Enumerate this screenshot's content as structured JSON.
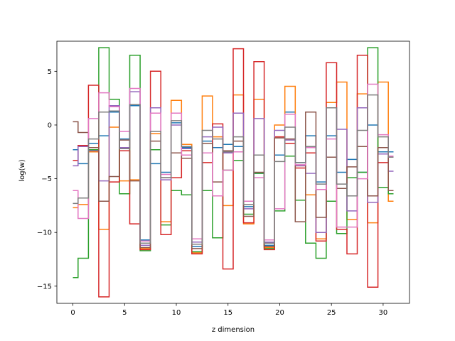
{
  "chart_data": {
    "type": "line",
    "drawstyle": "steps-mid",
    "title": "",
    "xlabel": "z dimension",
    "ylabel": "log(w)",
    "xlim": [
      -1.55,
      32.55
    ],
    "ylim": [
      -16.6,
      7.8
    ],
    "xticks": [
      0,
      5,
      10,
      15,
      20,
      25,
      30
    ],
    "yticks": [
      -15,
      -10,
      -5,
      0,
      5
    ],
    "ytick_labels": [
      "−15",
      "−10",
      "−5",
      "0",
      "5"
    ],
    "grid": false,
    "legend": false,
    "x": [
      0,
      1,
      2,
      3,
      4,
      5,
      6,
      7,
      8,
      9,
      10,
      11,
      12,
      13,
      14,
      15,
      16,
      17,
      18,
      19,
      20,
      21,
      22,
      23,
      24,
      25,
      26,
      27,
      28,
      29,
      30,
      31
    ],
    "series": [
      {
        "color": "#1f77b4",
        "values": [
          -2.3,
          -3.6,
          -1.7,
          -1.0,
          1.2,
          -1.3,
          1.8,
          -10.7,
          -3.6,
          -4.4,
          0.2,
          -2.1,
          -11.3,
          -1.5,
          -2.1,
          -1.8,
          -2.0,
          -7.6,
          -4.5,
          -11.2,
          -2.8,
          1.2,
          -3.5,
          -1.0,
          -5.3,
          -1.0,
          -4.4,
          -3.2,
          -4.4,
          0.0,
          -2.5,
          -2.5
        ]
      },
      {
        "color": "#ff7f0e",
        "values": [
          -7.7,
          -7.4,
          -2.5,
          -9.7,
          -0.2,
          -5.2,
          -5.1,
          -11.5,
          -0.8,
          -9.0,
          2.3,
          -1.8,
          -11.9,
          2.7,
          -1.1,
          -7.5,
          2.8,
          -9.2,
          2.4,
          -11.4,
          0.0,
          3.6,
          -3.8,
          -6.5,
          -10.6,
          2.1,
          4.0,
          -8.8,
          2.9,
          -9.1,
          4.0,
          -7.1
        ]
      },
      {
        "color": "#2ca02c",
        "values": [
          -14.2,
          -12.4,
          -2.3,
          7.2,
          2.4,
          -6.4,
          6.5,
          -11.7,
          -2.3,
          -9.3,
          -6.1,
          -6.5,
          -11.8,
          -6.1,
          -10.5,
          -4.2,
          -3.3,
          -8.3,
          -4.5,
          -11.5,
          -8.0,
          -2.9,
          -7.0,
          -11.0,
          -12.4,
          -7.1,
          -10.1,
          -4.9,
          -4.4,
          7.2,
          -5.8,
          -6.4
        ]
      },
      {
        "color": "#d62728",
        "values": [
          -3.3,
          -1.9,
          3.7,
          -16.0,
          -5.3,
          -2.4,
          -9.2,
          -11.6,
          5.0,
          -10.2,
          -4.9,
          -2.4,
          -12.0,
          -3.5,
          0.1,
          -13.4,
          7.1,
          -9.1,
          5.9,
          -11.6,
          -1.1,
          -1.7,
          -4.0,
          -2.6,
          -10.8,
          5.8,
          -9.7,
          -12.0,
          6.5,
          -15.1,
          -3.5,
          -3.0
        ]
      },
      {
        "color": "#9467bd",
        "values": [
          -3.8,
          -2.0,
          -2.4,
          -5.2,
          1.8,
          -2.1,
          3.1,
          -11.2,
          1.6,
          -5.1,
          0.0,
          -2.2,
          -10.9,
          -1.1,
          -0.2,
          -2.6,
          1.1,
          -7.8,
          0.6,
          -10.9,
          -0.5,
          -1.4,
          -3.8,
          -4.5,
          -10.0,
          1.6,
          -0.4,
          -8.0,
          1.6,
          -7.2,
          -2.7,
          -4.3
        ]
      },
      {
        "color": "#8c564b",
        "values": [
          0.3,
          -0.7,
          -2.1,
          -7.1,
          -4.8,
          -1.4,
          -5.2,
          -11.4,
          -1.5,
          -4.9,
          -2.6,
          -3.1,
          -11.5,
          -1.7,
          -5.3,
          -2.4,
          -1.5,
          -8.5,
          -4.4,
          -11.3,
          -1.2,
          -1.3,
          -9.0,
          1.2,
          -8.6,
          -3.0,
          -5.9,
          -3.9,
          -2.0,
          -6.6,
          -2.1,
          -6.1
        ]
      },
      {
        "color": "#e377c2",
        "values": [
          -6.1,
          -8.7,
          0.6,
          3.0,
          1.7,
          -0.6,
          3.4,
          -10.8,
          1.1,
          -4.6,
          1.1,
          -2.8,
          -10.6,
          -2.6,
          -6.6,
          -4.2,
          -2.5,
          -7.1,
          -4.9,
          -10.7,
          -7.8,
          1.0,
          -3.7,
          -2.1,
          -6.0,
          -1.3,
          -9.5,
          -9.5,
          -5.0,
          3.8,
          -0.9,
          -2.9
        ]
      },
      {
        "color": "#7f7f7f",
        "values": [
          -7.3,
          -6.8,
          -1.3,
          1.2,
          1.3,
          -2.2,
          1.9,
          -11.0,
          -0.6,
          -4.9,
          0.4,
          -2.0,
          -11.1,
          -0.5,
          -1.3,
          -2.5,
          -1.1,
          -7.4,
          -2.8,
          -11.0,
          -3.4,
          -0.2,
          -3.5,
          -2.0,
          -5.5,
          1.6,
          -5.5,
          -6.6,
          -0.5,
          2.8,
          -1.1,
          -3.0
        ]
      }
    ]
  }
}
